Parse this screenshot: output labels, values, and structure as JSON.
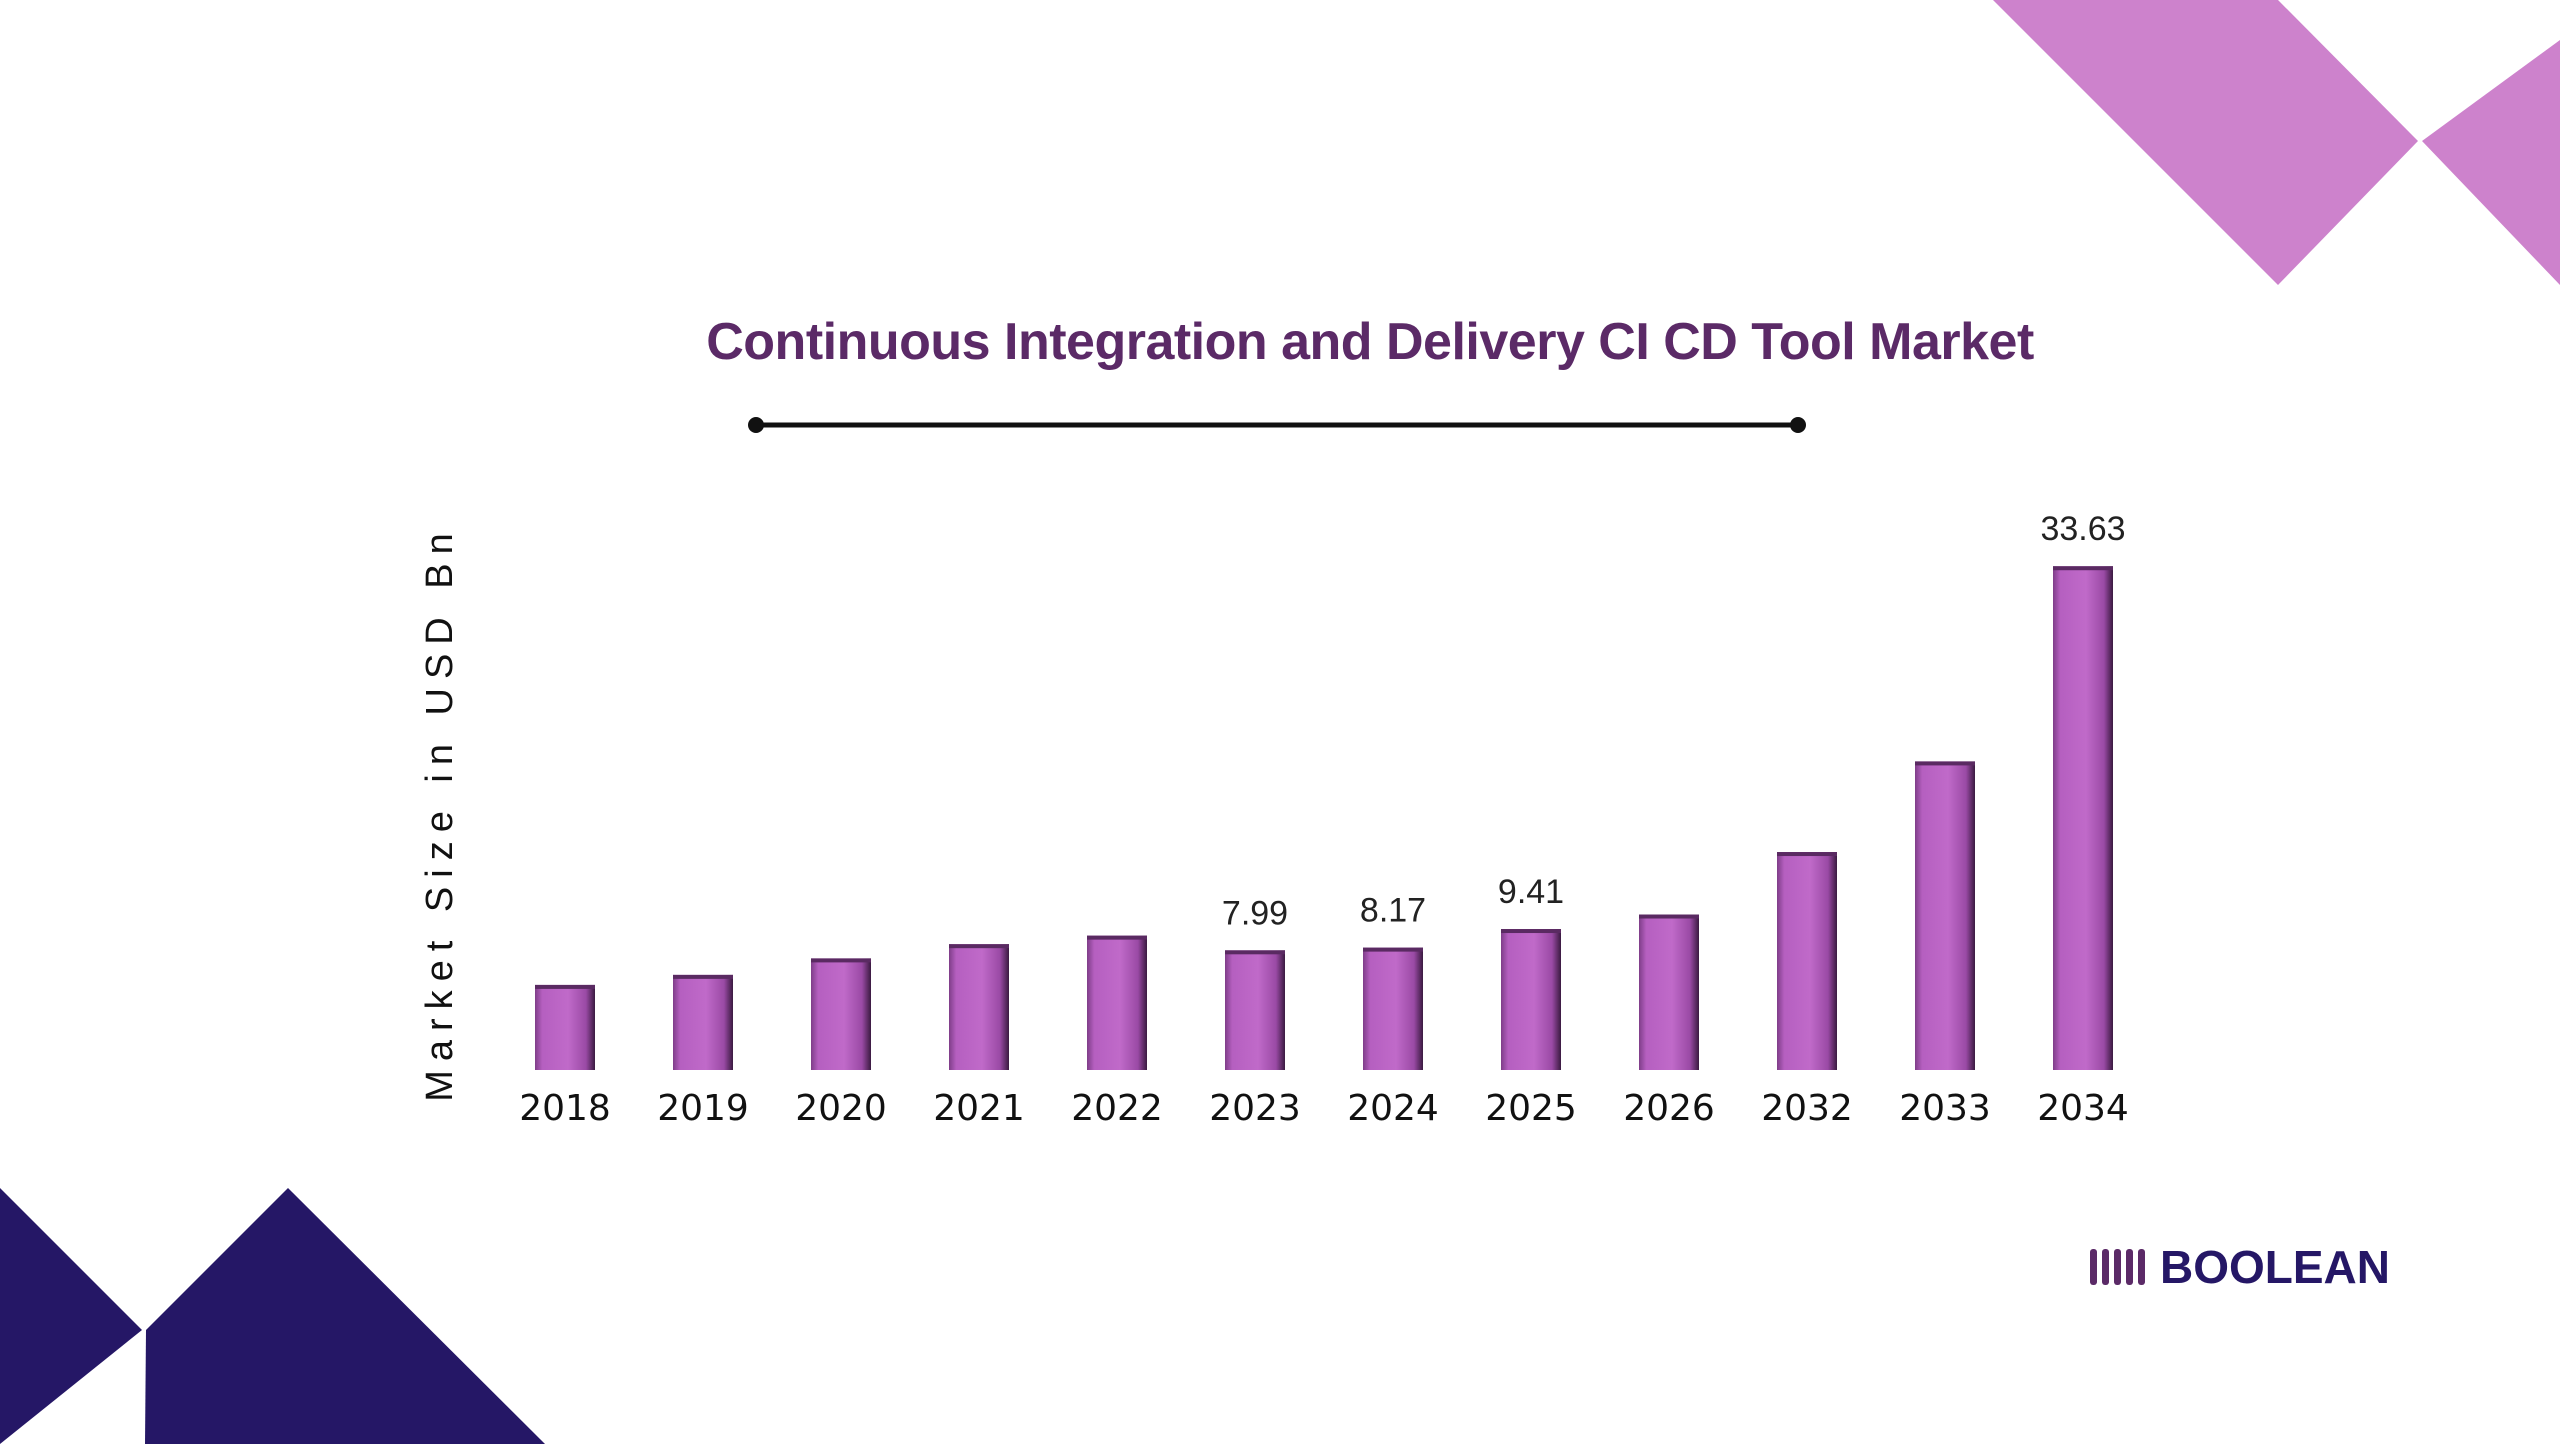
{
  "colors": {
    "bar": "#b55fc0",
    "bar_shade": "#3a1a40",
    "title": "#5b2a67",
    "decor_purple": "#cd82cc",
    "decor_navy": "#251766",
    "logo": "#251766"
  },
  "logo": {
    "text": "BOOLEAN",
    "icon": "barcode-bars-icon"
  },
  "chart_data": {
    "type": "bar",
    "title": "Continuous Integration and Delivery CI CD Tool Market",
    "xlabel": "",
    "ylabel": "Market Size in USD Bn",
    "categories": [
      "2018",
      "2019",
      "2020",
      "2021",
      "2022",
      "2023",
      "2024",
      "2025",
      "2026",
      "2032",
      "2033",
      "2034"
    ],
    "values": [
      5.68,
      6.35,
      7.45,
      8.4,
      8.97,
      7.99,
      8.17,
      9.41,
      10.38,
      14.55,
      20.6,
      33.63
    ],
    "data_labels": [
      null,
      null,
      null,
      null,
      null,
      "7.99",
      "8.17",
      "9.41",
      null,
      null,
      null,
      "33.63"
    ],
    "grid": false,
    "legend": "none"
  }
}
